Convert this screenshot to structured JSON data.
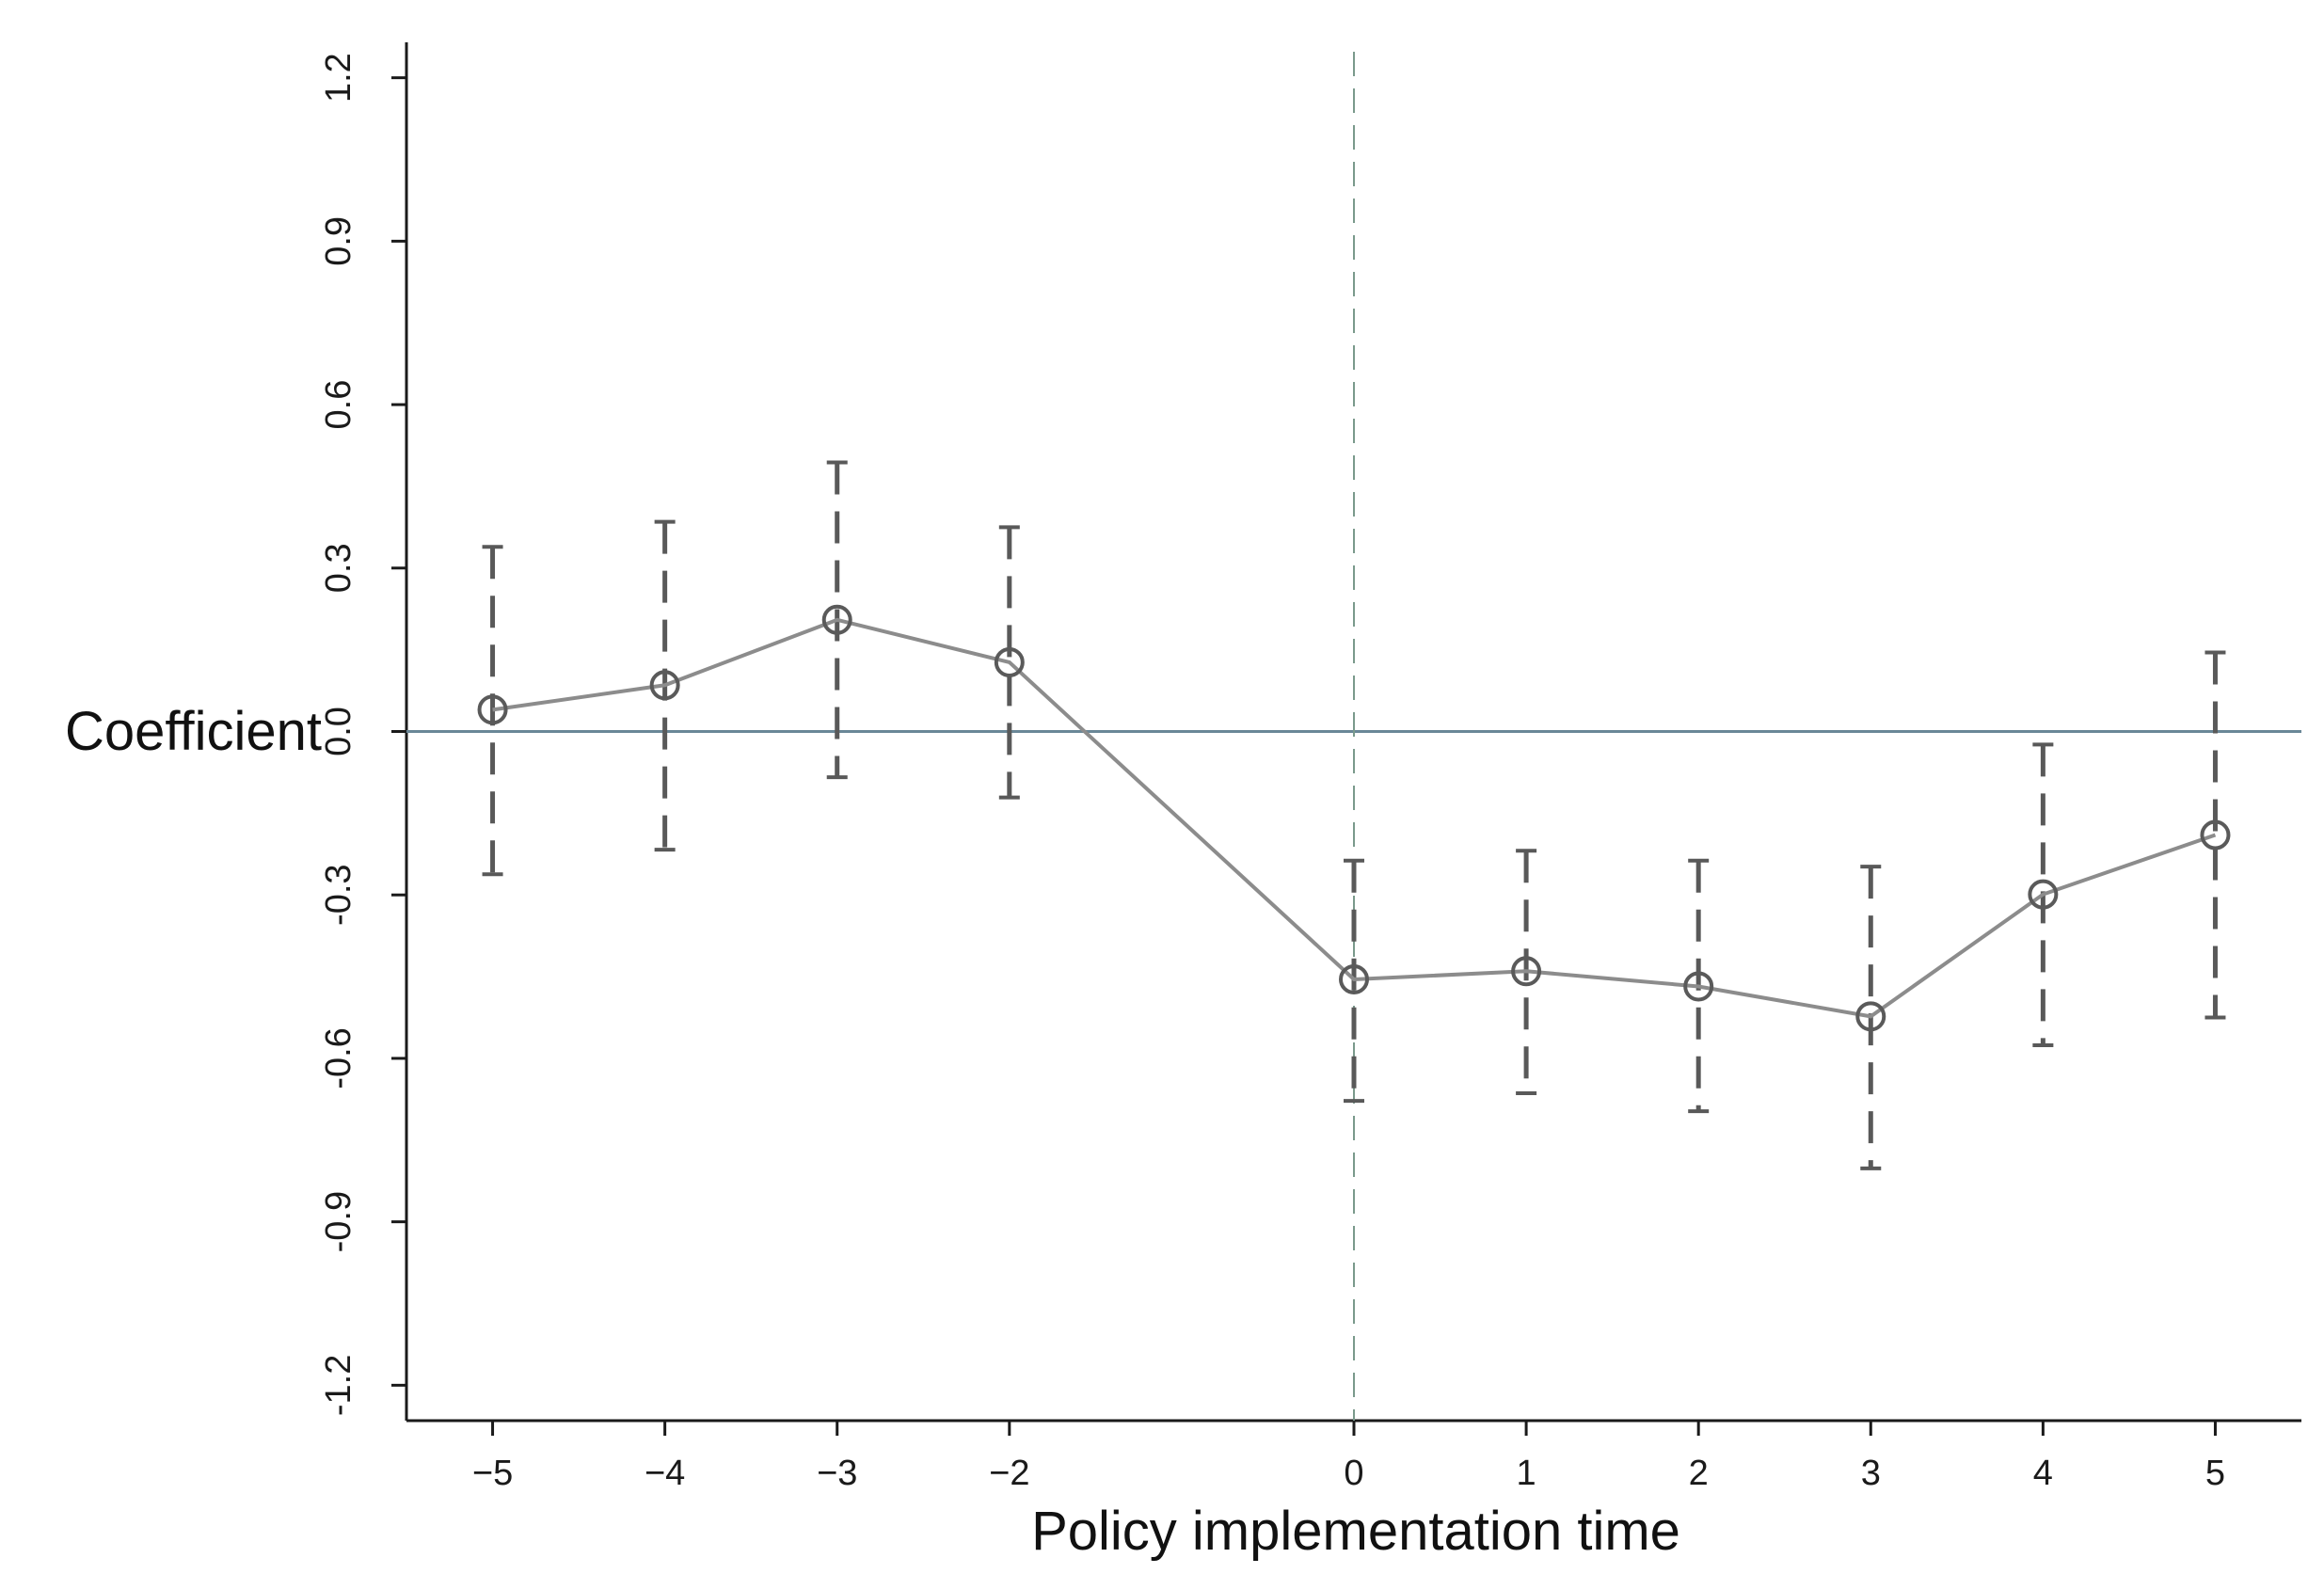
{
  "chart_data": {
    "type": "line",
    "xlabel": "Policy implementation time",
    "ylabel": "Coefficient",
    "x": [
      -5,
      -4,
      -3,
      -2,
      0,
      1,
      2,
      3,
      4,
      5
    ],
    "x_tick_labels": [
      "−5",
      "−4",
      "−3",
      "−2",
      "0",
      "1",
      "2",
      "3",
      "4",
      "5"
    ],
    "series": [
      {
        "values": [
          0.04,
          0.085,
          0.205,
          0.127,
          -0.455,
          -0.44,
          -0.468,
          -0.523,
          -0.299,
          -0.19
        ],
        "ci_lower": [
          -0.262,
          -0.217,
          -0.084,
          -0.121,
          -0.678,
          -0.664,
          -0.697,
          -0.802,
          -0.576,
          -0.525
        ],
        "ci_upper": [
          0.339,
          0.385,
          0.494,
          0.375,
          -0.237,
          -0.219,
          -0.237,
          -0.248,
          -0.024,
          0.145
        ]
      }
    ],
    "y_ticks": [
      -1.2,
      -0.9,
      -0.6,
      -0.3,
      0.0,
      0.3,
      0.6,
      0.9,
      1.2
    ],
    "y_tick_labels": [
      "-1.2",
      "-0.9",
      "-0.6",
      "-0.3",
      "0.0",
      "0.3",
      "0.6",
      "0.9",
      "1.2"
    ],
    "ylim": [
      -1.265,
      1.265
    ],
    "xlim": [
      -5.5,
      5.5
    ],
    "reference_lines": {
      "horizontal_y": 0.0,
      "vertical_x": 0
    },
    "grid": false,
    "legend": "none",
    "colors": {
      "series_line": "#8c8c8c",
      "markers": "#5a5a5a",
      "ci_bars": "#595959",
      "zero_line": "#6a8797",
      "vertical_line": "#7a9a8c",
      "axes": "#1a1a1a"
    }
  }
}
